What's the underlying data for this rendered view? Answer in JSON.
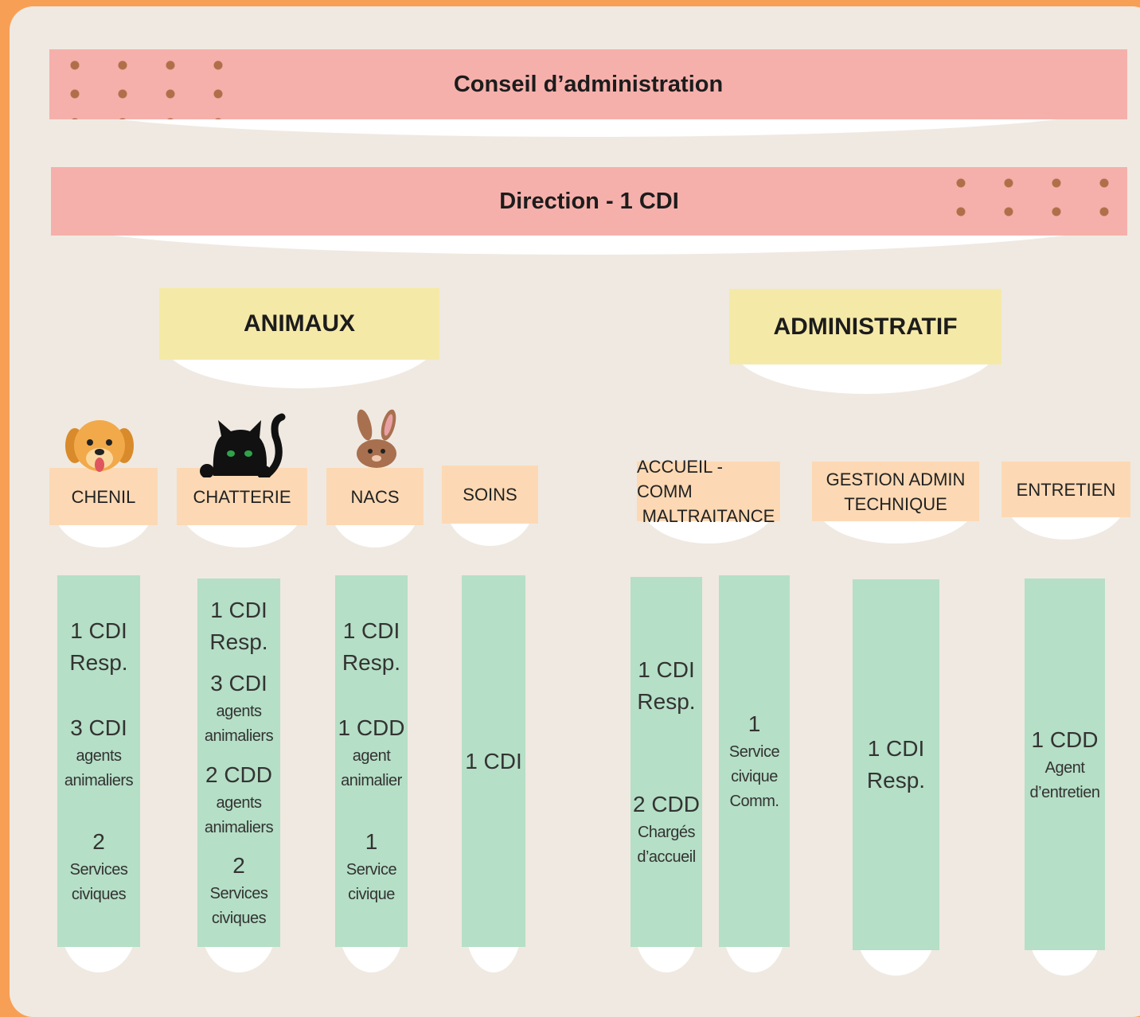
{
  "board": "Conseil d’administration",
  "direction": "Direction - 1 CDI",
  "poles": [
    {
      "label": "ANIMAUX",
      "services": [
        {
          "label": [
            "CHENIL"
          ],
          "columns": [
            {
              "items": [
                {
                  "lines": [
                    "1 CDI",
                    "Resp."
                  ]
                },
                {
                  "lines": [
                    "3 CDI"
                  ],
                  "detail": [
                    "agents",
                    "animaliers"
                  ]
                },
                {
                  "lines": [
                    "2"
                  ],
                  "detail": [
                    "Services",
                    "civiques"
                  ]
                }
              ]
            }
          ]
        },
        {
          "label": [
            "CHATTERIE"
          ],
          "columns": [
            {
              "items": [
                {
                  "lines": [
                    "1 CDI",
                    "Resp."
                  ]
                },
                {
                  "lines": [
                    "3 CDI"
                  ],
                  "detail": [
                    "agents",
                    "animaliers"
                  ]
                },
                {
                  "lines": [
                    "2 CDD"
                  ],
                  "detail": [
                    "agents",
                    "animaliers"
                  ]
                },
                {
                  "lines": [
                    "2"
                  ],
                  "detail": [
                    "Services",
                    "civiques"
                  ]
                }
              ]
            }
          ]
        },
        {
          "label": [
            "NACS"
          ],
          "columns": [
            {
              "items": [
                {
                  "lines": [
                    "1 CDI",
                    "Resp."
                  ]
                },
                {
                  "lines": [
                    "1 CDD"
                  ],
                  "detail": [
                    "agent",
                    "animalier"
                  ]
                },
                {
                  "lines": [
                    "1"
                  ],
                  "detail": [
                    "Service",
                    "civique"
                  ]
                }
              ]
            }
          ]
        },
        {
          "label": [
            "SOINS"
          ],
          "columns": [
            {
              "items": [
                {
                  "lines": [
                    "1 CDI"
                  ]
                }
              ]
            }
          ]
        }
      ]
    },
    {
      "label": "ADMINISTRATIF",
      "services": [
        {
          "label": [
            "ACCUEIL - COMM",
            "MALTRAITANCE"
          ],
          "columns": [
            {
              "items": [
                {
                  "lines": [
                    "1 CDI",
                    "Resp."
                  ]
                },
                {
                  "lines": [
                    "2 CDD"
                  ],
                  "detail": [
                    "Chargés",
                    "d’accueil"
                  ]
                }
              ]
            },
            {
              "items": [
                {
                  "lines": [
                    "1"
                  ],
                  "detail": [
                    "Service",
                    "civique",
                    "Comm."
                  ]
                }
              ]
            }
          ]
        },
        {
          "label": [
            "GESTION ADMIN",
            "TECHNIQUE"
          ],
          "columns": [
            {
              "items": [
                {
                  "lines": [
                    "1 CDI",
                    "Resp."
                  ]
                }
              ]
            }
          ]
        },
        {
          "label": [
            "ENTRETIEN"
          ],
          "columns": [
            {
              "items": [
                {
                  "lines": [
                    "1 CDD"
                  ],
                  "detail": [
                    "Agent",
                    "d’entretien"
                  ]
                }
              ]
            }
          ]
        }
      ]
    }
  ]
}
